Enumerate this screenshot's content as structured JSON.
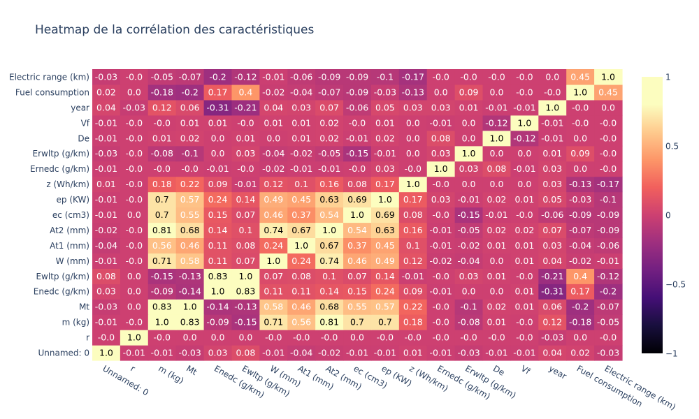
{
  "chart_data": {
    "type": "heatmap",
    "title": "Heatmap de la corrélation des caractéristiques",
    "xlabel": "",
    "ylabel": "",
    "colorscale": "magma",
    "zlim": [
      -1,
      1
    ],
    "colorbar_ticks": [
      "1",
      "0.5",
      "0",
      "−0.5",
      "−1"
    ],
    "colorbar_tick_values": [
      1,
      0.5,
      0,
      -0.5,
      -1
    ],
    "x_labels": [
      "Unnamed: 0",
      "r",
      "m (kg)",
      "Mt",
      "Enedc (g/km)",
      "Ewltp (g/km)",
      "W (mm)",
      "At1 (mm)",
      "At2 (mm)",
      "ec (cm3)",
      "ep (KW)",
      "z (Wh/km)",
      "Ernedc (g/km)",
      "Erwltp (g/km)",
      "De",
      "Vf",
      "year",
      "Fuel consumption",
      "Electric range (km)"
    ],
    "y_labels": [
      "Unnamed: 0",
      "r",
      "m (kg)",
      "Mt",
      "Enedc (g/km)",
      "Ewltp (g/km)",
      "W (mm)",
      "At1 (mm)",
      "At2 (mm)",
      "ec (cm3)",
      "ep (KW)",
      "z (Wh/km)",
      "Ernedc (g/km)",
      "Erwltp (g/km)",
      "De",
      "Vf",
      "year",
      "Fuel consumption",
      "Electric range (km)"
    ],
    "z": [
      [
        "1.0",
        "-0.01",
        "-0.01",
        "-0.03",
        "0.03",
        "0.08",
        "-0.01",
        "-0.04",
        "-0.02",
        "-0.01",
        "-0.01",
        "0.01",
        "-0.01",
        "-0.03",
        "-0.01",
        "-0.01",
        "0.04",
        "0.02",
        "-0.03"
      ],
      [
        "-0.0",
        "1.0",
        "-0.0",
        "0.0",
        "0.0",
        "0.0",
        "-0.0",
        "-0.0",
        "-0.0",
        "0.0",
        "-0.0",
        "-0.0",
        "-0.0",
        "-0.0",
        "-0.0",
        "-0.0",
        "-0.03",
        "0.0",
        "-0.0"
      ],
      [
        "-0.01",
        "-0.0",
        "1.0",
        "0.83",
        "-0.09",
        "-0.15",
        "0.71",
        "0.56",
        "0.81",
        "0.7",
        "0.7",
        "0.18",
        "-0.0",
        "-0.08",
        "0.01",
        "-0.0",
        "0.12",
        "-0.18",
        "-0.05"
      ],
      [
        "-0.03",
        "0.0",
        "0.83",
        "1.0",
        "-0.14",
        "-0.13",
        "0.58",
        "0.46",
        "0.68",
        "0.55",
        "0.57",
        "0.22",
        "-0.0",
        "-0.1",
        "0.02",
        "0.01",
        "0.06",
        "-0.2",
        "-0.07"
      ],
      [
        "0.03",
        "0.0",
        "-0.09",
        "-0.14",
        "1.0",
        "0.83",
        "0.11",
        "0.11",
        "0.14",
        "0.15",
        "0.24",
        "0.09",
        "-0.01",
        "0.0",
        "0.0",
        "0.01",
        "-0.31",
        "0.17",
        "-0.2"
      ],
      [
        "0.08",
        "0.0",
        "-0.15",
        "-0.13",
        "0.83",
        "1.0",
        "0.07",
        "0.08",
        "0.1",
        "0.07",
        "0.14",
        "-0.01",
        "-0.0",
        "0.03",
        "0.01",
        "-0.0",
        "-0.21",
        "0.4",
        "-0.12"
      ],
      [
        "-0.01",
        "-0.0",
        "0.71",
        "0.58",
        "0.11",
        "0.07",
        "1.0",
        "0.24",
        "0.74",
        "0.46",
        "0.49",
        "0.12",
        "-0.02",
        "-0.04",
        "0.0",
        "0.01",
        "0.04",
        "-0.02",
        "-0.01"
      ],
      [
        "-0.04",
        "-0.0",
        "0.56",
        "0.46",
        "0.11",
        "0.08",
        "0.24",
        "1.0",
        "0.67",
        "0.37",
        "0.45",
        "0.1",
        "-0.01",
        "-0.02",
        "0.01",
        "0.01",
        "0.03",
        "-0.04",
        "-0.06"
      ],
      [
        "-0.02",
        "-0.0",
        "0.81",
        "0.68",
        "0.14",
        "0.1",
        "0.74",
        "0.67",
        "1.0",
        "0.54",
        "0.63",
        "0.16",
        "-0.01",
        "-0.05",
        "0.02",
        "0.02",
        "0.07",
        "-0.07",
        "-0.09"
      ],
      [
        "-0.01",
        "0.0",
        "0.7",
        "0.55",
        "0.15",
        "0.07",
        "0.46",
        "0.37",
        "0.54",
        "1.0",
        "0.69",
        "0.08",
        "-0.0",
        "-0.15",
        "-0.01",
        "-0.0",
        "-0.06",
        "-0.09",
        "-0.09"
      ],
      [
        "-0.01",
        "-0.0",
        "0.7",
        "0.57",
        "0.24",
        "0.14",
        "0.49",
        "0.45",
        "0.63",
        "0.69",
        "1.0",
        "0.17",
        "0.03",
        "-0.01",
        "0.02",
        "0.01",
        "0.05",
        "-0.03",
        "-0.1"
      ],
      [
        "0.01",
        "-0.0",
        "0.18",
        "0.22",
        "0.09",
        "-0.01",
        "0.12",
        "0.1",
        "0.16",
        "0.08",
        "0.17",
        "1.0",
        "-0.0",
        "0.0",
        "0.0",
        "0.0",
        "0.03",
        "-0.13",
        "-0.17"
      ],
      [
        "-0.01",
        "-0.0",
        "-0.0",
        "-0.0",
        "-0.01",
        "-0.0",
        "-0.02",
        "-0.01",
        "-0.01",
        "-0.0",
        "0.03",
        "-0.0",
        "1.0",
        "0.03",
        "0.08",
        "-0.01",
        "0.03",
        "0.0",
        "-0.0"
      ],
      [
        "-0.03",
        "-0.0",
        "-0.08",
        "-0.1",
        "0.0",
        "0.03",
        "-0.04",
        "-0.02",
        "-0.05",
        "-0.15",
        "-0.01",
        "0.0",
        "0.03",
        "1.0",
        "0.0",
        "0.0",
        "0.01",
        "0.09",
        "-0.0"
      ],
      [
        "-0.01",
        "-0.0",
        "0.01",
        "0.02",
        "0.0",
        "0.01",
        "0.0",
        "0.01",
        "0.02",
        "-0.01",
        "0.02",
        "0.0",
        "0.08",
        "0.0",
        "1.0",
        "-0.12",
        "-0.01",
        "0.0",
        "-0.0"
      ],
      [
        "-0.01",
        "-0.0",
        "-0.0",
        "0.01",
        "0.01",
        "-0.0",
        "0.01",
        "0.01",
        "0.02",
        "-0.0",
        "0.01",
        "0.0",
        "-0.01",
        "0.0",
        "-0.12",
        "1.0",
        "-0.01",
        "-0.0",
        "-0.0"
      ],
      [
        "0.04",
        "-0.03",
        "0.12",
        "0.06",
        "-0.31",
        "-0.21",
        "0.04",
        "0.03",
        "0.07",
        "-0.06",
        "0.05",
        "0.03",
        "0.03",
        "0.01",
        "-0.01",
        "-0.01",
        "1.0",
        "-0.0",
        "0.0"
      ],
      [
        "0.02",
        "0.0",
        "-0.18",
        "-0.2",
        "0.17",
        "0.4",
        "-0.02",
        "-0.04",
        "-0.07",
        "-0.09",
        "-0.03",
        "-0.13",
        "0.0",
        "0.09",
        "0.0",
        "-0.0",
        "-0.0",
        "1.0",
        "0.45"
      ],
      [
        "-0.03",
        "-0.0",
        "-0.05",
        "-0.07",
        "-0.2",
        "-0.12",
        "-0.01",
        "-0.06",
        "-0.09",
        "-0.09",
        "-0.1",
        "-0.17",
        "-0.0",
        "-0.0",
        "-0.0",
        "-0.0",
        "0.0",
        "0.45",
        "1.0"
      ]
    ]
  }
}
